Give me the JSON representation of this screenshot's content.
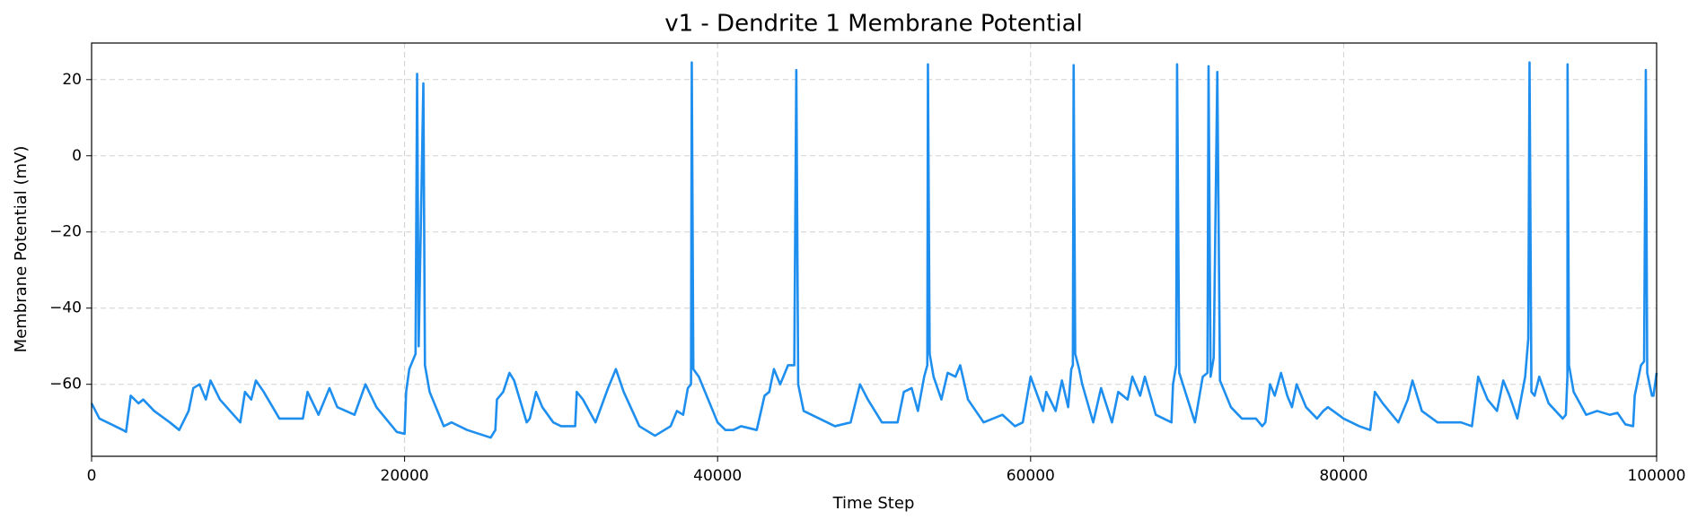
{
  "chart_data": {
    "type": "line",
    "title": "v1 - Dendrite 1 Membrane Potential",
    "x_label": "Time Step",
    "y_label": "Membrane Potential (mV)",
    "color": "#1f8fef",
    "grid": true,
    "xlim": [
      0,
      100000
    ],
    "xticks": [
      0,
      20000,
      40000,
      60000,
      80000,
      100000
    ],
    "ylim": [
      -78.9,
      29.6
    ],
    "yticks": [
      {
        "value": -60,
        "label": "−60"
      },
      {
        "value": -40,
        "label": "−40"
      },
      {
        "value": -20,
        "label": "−20"
      },
      0,
      20
    ],
    "x": [
      0,
      500,
      2000,
      2200,
      2500,
      3000,
      3300,
      4000,
      5000,
      5600,
      6200,
      6500,
      6900,
      7300,
      7600,
      8200,
      9500,
      9800,
      10200,
      10500,
      11000,
      12000,
      13500,
      13800,
      14500,
      15200,
      15700,
      16800,
      17500,
      18200,
      19500,
      20000,
      20100,
      20300,
      20700,
      20800,
      20900,
      21200,
      21300,
      21600,
      22500,
      23000,
      24000,
      25500,
      25800,
      25900,
      26300,
      26700,
      27000,
      27800,
      28000,
      28400,
      28800,
      29500,
      30000,
      30900,
      31000,
      31400,
      32200,
      33000,
      33500,
      34000,
      35000,
      36000,
      37000,
      37400,
      37800,
      38100,
      38300,
      38350,
      38450,
      38800,
      40000,
      40500,
      41000,
      41500,
      42500,
      43000,
      43300,
      43600,
      44000,
      44500,
      44900,
      45030,
      45150,
      45500,
      46500,
      47500,
      48500,
      49100,
      49600,
      50500,
      51500,
      51900,
      52400,
      52800,
      53200,
      53400,
      53440,
      53550,
      53800,
      54300,
      54700,
      55200,
      55500,
      56000,
      57000,
      58200,
      59000,
      59500,
      60000,
      60800,
      61000,
      61600,
      62000,
      62400,
      62600,
      62700,
      62750,
      62850,
      63100,
      63300,
      64000,
      64500,
      65200,
      65600,
      66200,
      66500,
      67000,
      67300,
      68000,
      69000,
      69100,
      69300,
      69360,
      69500,
      70500,
      71000,
      71300,
      71370,
      71500,
      71700,
      71930,
      72100,
      72800,
      73500,
      74400,
      74800,
      75000,
      75300,
      75600,
      76000,
      76400,
      76700,
      77000,
      77600,
      78300,
      78700,
      79000,
      80000,
      81000,
      81700,
      82000,
      82500,
      83500,
      84100,
      84400,
      85000,
      86000,
      87500,
      88200,
      88600,
      89200,
      89800,
      90200,
      90600,
      91100,
      91600,
      91800,
      91880,
      92000,
      92200,
      92500,
      93100,
      94000,
      94200,
      94300,
      94310,
      94400,
      94700,
      95500,
      96200,
      97000,
      97500,
      98000,
      98500,
      98600,
      99000,
      99200,
      99310,
      99400,
      99700,
      99800,
      100000
    ],
    "values": [
      -65,
      -69,
      -72,
      -72.5,
      -63,
      -65,
      -64,
      -67,
      -70,
      -72,
      -67,
      -61,
      -60,
      -64,
      -59,
      -64,
      -70,
      -62,
      -64,
      -59,
      -62,
      -69,
      -69,
      -62,
      -68,
      -61,
      -66,
      -68,
      -60,
      -66,
      -72.5,
      -73,
      -62,
      -56,
      -52,
      21.5,
      -50,
      19,
      -55,
      -62,
      -71,
      -70,
      -72,
      -74,
      -72,
      -64,
      -62,
      -57,
      -59,
      -70,
      -69,
      -62,
      -66,
      -70,
      -71,
      -71,
      -62,
      -64,
      -70,
      -61,
      -56,
      -62,
      -71,
      -73.5,
      -71,
      -67,
      -68,
      -61,
      -60,
      24.5,
      -56,
      -58,
      -70,
      -72,
      -72,
      -71,
      -72,
      -63,
      -62,
      -56,
      -60,
      -55,
      -55,
      22.5,
      -60,
      -67,
      -69,
      -71,
      -70,
      -60,
      -64,
      -70,
      -70,
      -62,
      -61,
      -67,
      -58,
      -55,
      24,
      -52,
      -58,
      -64,
      -57,
      -58,
      -55,
      -64,
      -70,
      -68,
      -71,
      -70,
      -58,
      -67,
      -62,
      -67,
      -59,
      -66,
      -56,
      -55,
      23.8,
      -52,
      -56,
      -60,
      -70,
      -61,
      -70,
      -62,
      -64,
      -58,
      -63,
      -58,
      -68,
      -70,
      -60,
      -55,
      24,
      -57,
      -70,
      -58,
      -57,
      23.5,
      -58,
      -53,
      22,
      -59,
      -66,
      -69,
      -69,
      -71,
      -70,
      -60,
      -63,
      -57,
      -63,
      -66,
      -60,
      -66,
      -69,
      -67,
      -66,
      -69,
      -71,
      -72,
      -62,
      -65,
      -70,
      -64,
      -59,
      -67,
      -70,
      -70,
      -71,
      -58,
      -64,
      -67,
      -59,
      -63,
      -69,
      -58,
      -48,
      24.5,
      -62,
      -63,
      -58,
      -65,
      -69,
      -68,
      -58,
      24,
      -55,
      -62,
      -68,
      -67,
      -68,
      -67.5,
      -70.5,
      -71,
      -63,
      -55,
      -54,
      22.5,
      -57,
      -63,
      -63,
      -57
    ]
  }
}
